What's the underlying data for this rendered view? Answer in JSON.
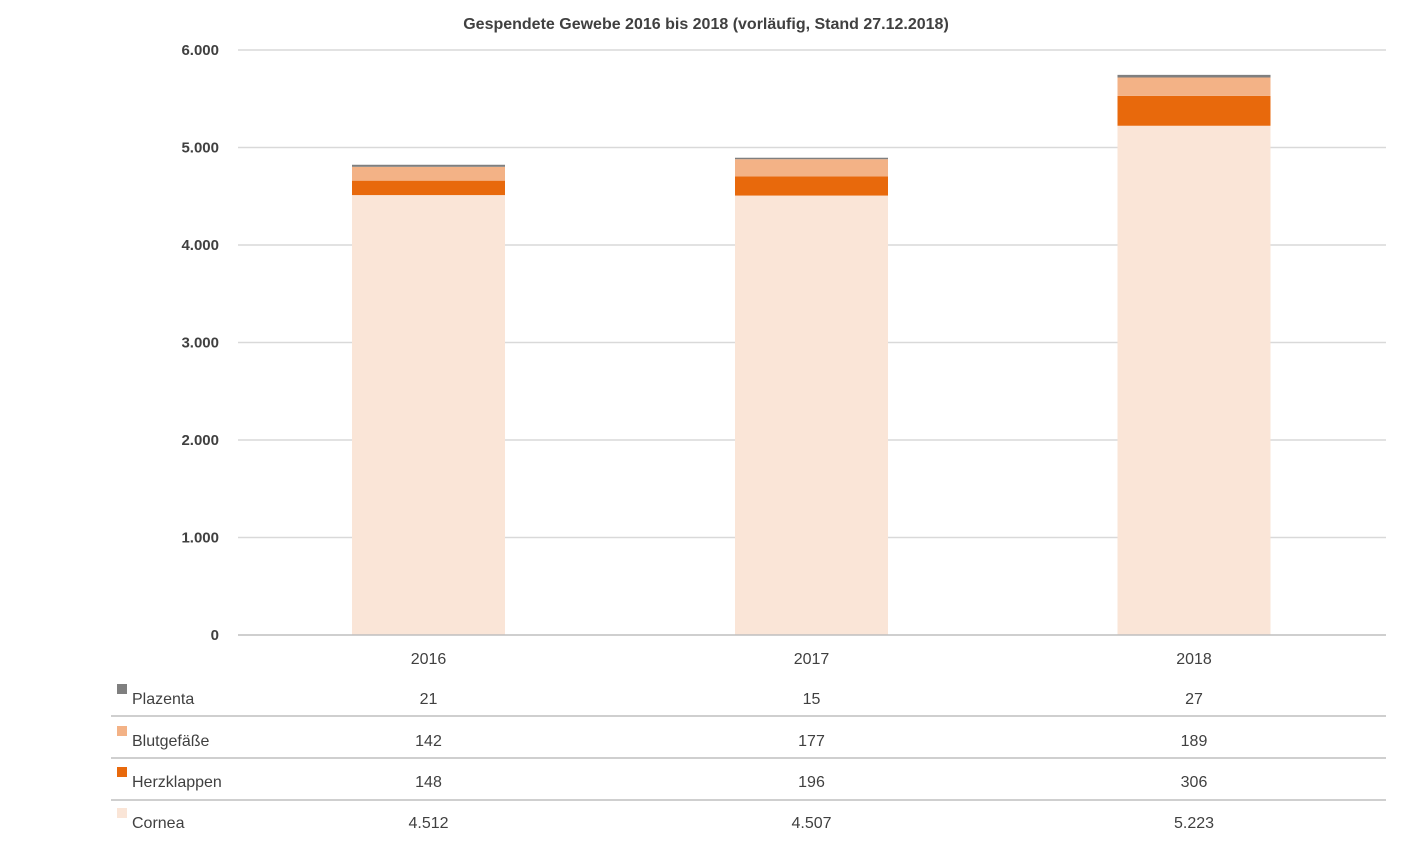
{
  "chart_data": {
    "type": "bar",
    "stacked": true,
    "title": "Gespendete Gewebe 2016 bis 2018 (vorläufig, Stand 27.12.2018)",
    "xlabel": "",
    "ylabel": "",
    "ylim": [
      0,
      6000
    ],
    "y_ticks": [
      "0",
      "1.000",
      "2.000",
      "3.000",
      "4.000",
      "5.000",
      "6.000"
    ],
    "grid": true,
    "legend": "data table below chart",
    "categories": [
      "2016",
      "2017",
      "2018"
    ],
    "series": [
      {
        "name": "Cornea",
        "color": "#FAE5D7",
        "values": [
          4512,
          4507,
          5223
        ],
        "labels": [
          "4.512",
          "4.507",
          "5.223"
        ]
      },
      {
        "name": "Herzklappen",
        "color": "#E8690C",
        "values": [
          148,
          196,
          306
        ],
        "labels": [
          "148",
          "196",
          "306"
        ]
      },
      {
        "name": "Blutgefäße",
        "color": "#F3B286",
        "values": [
          142,
          177,
          189
        ],
        "labels": [
          "142",
          "177",
          "189"
        ]
      },
      {
        "name": "Plazenta",
        "color": "#7F7F7F",
        "values": [
          21,
          15,
          27
        ],
        "labels": [
          "21",
          "15",
          "27"
        ]
      }
    ],
    "table_row_order": [
      "Plazenta",
      "Blutgefäße",
      "Herzklappen",
      "Cornea"
    ]
  }
}
